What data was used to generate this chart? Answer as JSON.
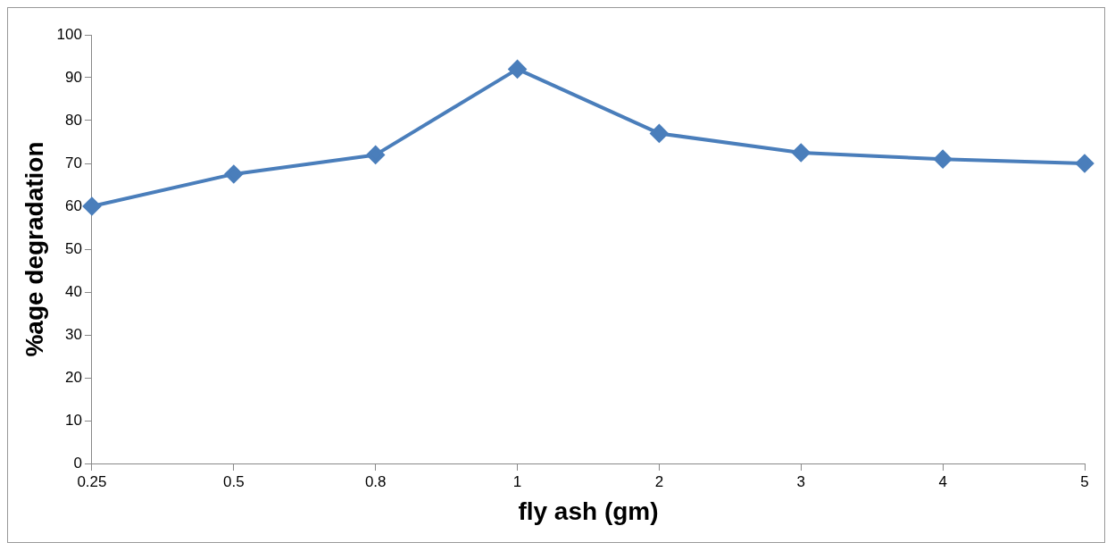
{
  "chart_data": {
    "type": "line",
    "xlabel": "fly ash (gm)",
    "ylabel": "%age degradation",
    "categories": [
      "0.25",
      "0.5",
      "0.8",
      "1",
      "2",
      "3",
      "4",
      "5"
    ],
    "series": [
      {
        "color": "#4a7ebb",
        "values": [
          60,
          67.5,
          72,
          92,
          77,
          72.5,
          71,
          70
        ]
      }
    ],
    "ylim": [
      0,
      100
    ],
    "yticks": [
      0,
      10,
      20,
      30,
      40,
      50,
      60,
      70,
      80,
      90,
      100
    ],
    "grid": false,
    "legend": false,
    "marker": "diamond",
    "line_style": "solid"
  }
}
